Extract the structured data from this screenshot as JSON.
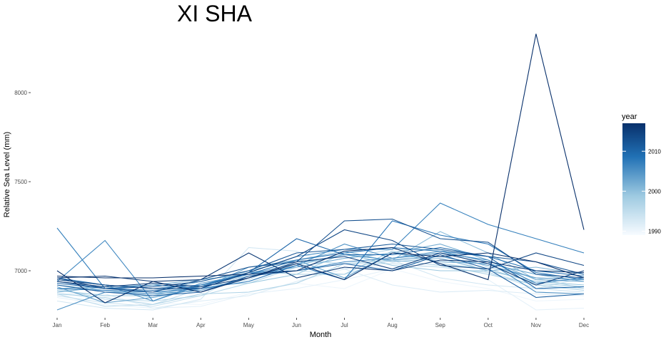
{
  "chart_data": {
    "type": "line",
    "title": "XI SHA",
    "xlabel": "Month",
    "ylabel": "Relative Sea Level (mm)",
    "categories": [
      "Jan",
      "Feb",
      "Mar",
      "Apr",
      "May",
      "Jun",
      "Jul",
      "Aug",
      "Sep",
      "Oct",
      "Nov",
      "Dec"
    ],
    "y_ticks": [
      7000,
      7500,
      8000
    ],
    "ylim": [
      6760,
      8360
    ],
    "grid": false,
    "legend": {
      "title": "year",
      "type": "colorbar",
      "position": "right",
      "ticks": [
        1990,
        2000,
        2010
      ],
      "range": [
        1989,
        2017
      ],
      "color_low": "#f7fbff",
      "color_high": "#08306b"
    },
    "series": [
      {
        "year": 1990,
        "values": [
          6880,
          6830,
          6820,
          6810,
          6880,
          6930,
          6900,
          7010,
          6940,
          6900,
          6830,
          6840
        ]
      },
      {
        "year": 1991,
        "values": [
          6850,
          6810,
          6790,
          6800,
          6870,
          6900,
          6950,
          7010,
          7030,
          6950,
          6780,
          6790
        ]
      },
      {
        "year": 1992,
        "values": [
          6870,
          6870,
          6790,
          6830,
          6860,
          6940,
          7010,
          6920,
          6880,
          6890,
          6870,
          6860
        ]
      },
      {
        "year": 1993,
        "values": [
          6830,
          6790,
          6780,
          6840,
          7130,
          7110,
          7010,
          7060,
          6960,
          6920,
          6900,
          6960
        ]
      },
      {
        "year": 1994,
        "values": [
          6860,
          6820,
          6800,
          6860,
          6990,
          7000,
          6980,
          7060,
          7100,
          6990,
          6900,
          6880
        ]
      },
      {
        "year": 1995,
        "values": [
          6870,
          6800,
          6810,
          6900,
          6950,
          7060,
          7040,
          7040,
          7020,
          6990,
          6920,
          6900
        ]
      },
      {
        "year": 1996,
        "values": [
          6900,
          6840,
          6830,
          6860,
          6930,
          7020,
          7070,
          7120,
          7120,
          7020,
          6960,
          6900
        ]
      },
      {
        "year": 1997,
        "values": [
          6870,
          6850,
          6810,
          6870,
          6880,
          6930,
          7040,
          7060,
          7030,
          6980,
          6920,
          6890
        ]
      },
      {
        "year": 1998,
        "values": [
          6900,
          6890,
          6850,
          6910,
          7000,
          6980,
          6980,
          7110,
          7040,
          7010,
          6930,
          6910
        ]
      },
      {
        "year": 1999,
        "values": [
          6890,
          6860,
          6860,
          6920,
          6930,
          6980,
          7100,
          7030,
          7000,
          7000,
          6940,
          6920
        ]
      },
      {
        "year": 2000,
        "values": [
          6920,
          6890,
          6870,
          6920,
          6970,
          7030,
          7090,
          7060,
          7220,
          7100,
          6950,
          6940
        ]
      },
      {
        "year": 2001,
        "values": [
          6900,
          6910,
          6880,
          6940,
          7000,
          7060,
          7110,
          7050,
          7070,
          7000,
          7020,
          6980
        ]
      },
      {
        "year": 2002,
        "values": [
          6880,
          6910,
          6920,
          6950,
          6980,
          7020,
          7070,
          7100,
          7150,
          7060,
          6950,
          6940
        ]
      },
      {
        "year": 2003,
        "values": [
          6910,
          6820,
          6850,
          6900,
          7020,
          7060,
          6960,
          7100,
          7050,
          7040,
          6980,
          6940
        ]
      },
      {
        "year": 2004,
        "values": [
          6950,
          6920,
          6830,
          6930,
          6980,
          7040,
          7090,
          7060,
          7080,
          7030,
          6960,
          6950
        ]
      },
      {
        "year": 2005,
        "values": [
          6780,
          6880,
          6870,
          6890,
          6960,
          7030,
          7150,
          7070,
          7110,
          7050,
          6880,
          6870
        ]
      },
      {
        "year": 2006,
        "values": [
          6940,
          7170,
          6830,
          6920,
          6990,
          7000,
          7050,
          7070,
          7100,
          7060,
          6930,
          6960
        ]
      },
      {
        "year": 2007,
        "values": [
          7240,
          6900,
          6920,
          6900,
          6990,
          7080,
          7120,
          7120,
          7380,
          7260,
          7180,
          7100
        ]
      },
      {
        "year": 2008,
        "values": [
          6900,
          6890,
          6880,
          6900,
          6940,
          7030,
          6950,
          7280,
          7200,
          7150,
          6990,
          6950
        ]
      },
      {
        "year": 2009,
        "values": [
          6960,
          6920,
          6900,
          6920,
          6980,
          7060,
          7100,
          7130,
          7110,
          7080,
          7000,
          6970
        ]
      },
      {
        "year": 2010,
        "values": [
          6930,
          6900,
          6890,
          6910,
          6990,
          7180,
          7090,
          7090,
          7130,
          7080,
          6900,
          6910
        ]
      },
      {
        "year": 2011,
        "values": [
          6920,
          6880,
          6860,
          6880,
          6970,
          7000,
          7040,
          7000,
          7090,
          7010,
          6850,
          6870
        ]
      },
      {
        "year": 2012,
        "values": [
          6940,
          6900,
          6910,
          6940,
          7000,
          7100,
          7120,
          7150,
          7120,
          7080,
          7050,
          6980
        ]
      },
      {
        "year": 2013,
        "values": [
          6960,
          6900,
          6880,
          6950,
          7020,
          7050,
          7280,
          7290,
          7180,
          7160,
          6980,
          6960
        ]
      },
      {
        "year": 2014,
        "values": [
          6950,
          6920,
          6900,
          6900,
          6990,
          7080,
          7230,
          7170,
          7030,
          7010,
          7100,
          7030
        ]
      },
      {
        "year": 2015,
        "values": [
          6940,
          6910,
          6930,
          6910,
          6960,
          7050,
          7080,
          7010,
          7100,
          7040,
          6920,
          7000
        ]
      },
      {
        "year": 2016,
        "values": [
          6960,
          6970,
          6940,
          6950,
          7100,
          6960,
          7020,
          7000,
          7060,
          7050,
          7000,
          6990
        ]
      },
      {
        "year": 2017,
        "values": [
          7000,
          6820,
          6940,
          6880,
          6960,
          7040,
          6950,
          7100,
          7080,
          7100,
          7050,
          6960
        ]
      },
      {
        "year": 2018,
        "values": [
          6970,
          6960,
          6960,
          6970,
          6980,
          7000,
          7110,
          7130,
          7040,
          6950,
          8330,
          7230
        ]
      }
    ]
  }
}
